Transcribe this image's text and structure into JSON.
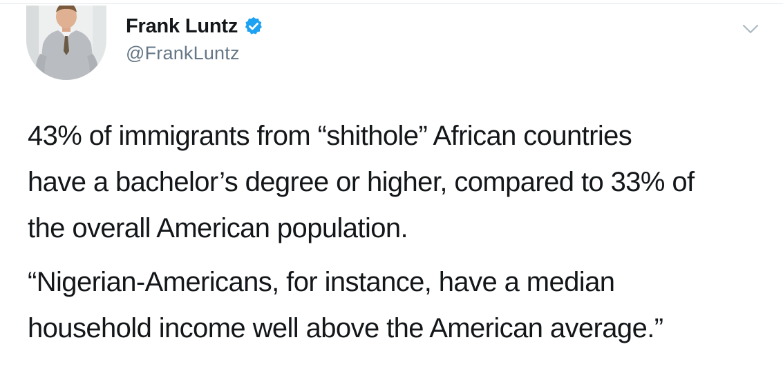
{
  "tweet": {
    "author": {
      "display_name": "Frank Luntz",
      "handle": "@FrankLuntz",
      "verified": true,
      "avatar_icon": "avatar-photo"
    },
    "menu_icon": "chevron-down-icon",
    "paragraphs": [
      {
        "lines": [
          "43% of immigrants from “shithole” African countries",
          "have a bachelor’s degree or higher, compared to 33% of",
          "the overall American population."
        ]
      },
      {
        "lines": [
          "“Nigerian-Americans, for instance, have a median",
          "household income well above the American average.”"
        ]
      }
    ]
  },
  "colors": {
    "text_primary": "#14171a",
    "text_secondary": "#657786",
    "verified_blue": "#1da1f2",
    "divider": "#e1e8ed"
  }
}
